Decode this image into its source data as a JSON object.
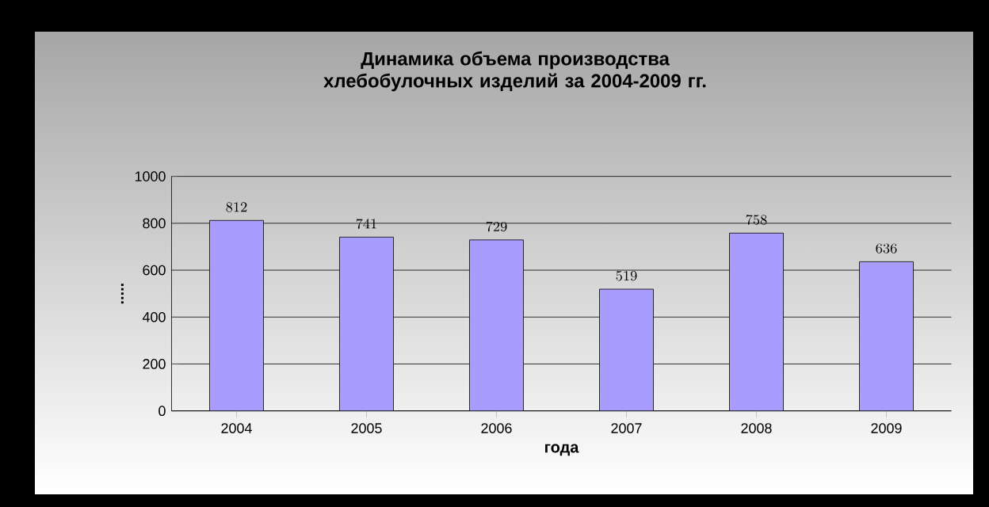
{
  "chart_data": {
    "type": "bar",
    "title": "Динамика объема производства хлебобулочных изделий за 2004-2009 гг.",
    "xlabel": "года",
    "ylabel": ".....",
    "categories": [
      "2004",
      "2005",
      "2006",
      "2007",
      "2008",
      "2009"
    ],
    "values": [
      812,
      741,
      729,
      519,
      758,
      636
    ],
    "color": "#a89cff",
    "ylim": [
      0,
      1000
    ],
    "yticks": [
      0,
      200,
      400,
      600,
      800,
      1000
    ],
    "grid": "y",
    "data_labels": true
  }
}
